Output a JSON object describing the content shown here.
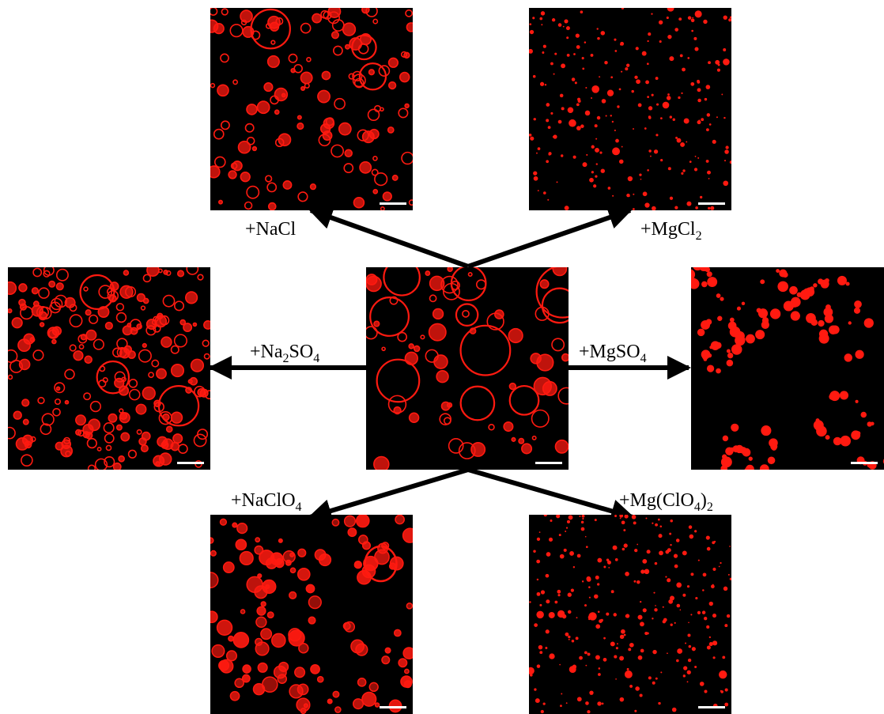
{
  "figure": {
    "colors": {
      "background": "#ffffff",
      "panel_background": "#000000",
      "droplet": "#ff1a10",
      "arrow": "#000000",
      "scale_bar": "#ffffff"
    },
    "panels": [
      {
        "id": "center",
        "condition": ""
      },
      {
        "id": "nacl",
        "condition": "+NaCl"
      },
      {
        "id": "mgcl2",
        "condition": "+MgCl2"
      },
      {
        "id": "na2so4",
        "condition": "+Na2SO4"
      },
      {
        "id": "mgso4",
        "condition": "+MgSO4"
      },
      {
        "id": "naclo4",
        "condition": "+NaClO4"
      },
      {
        "id": "mgclo42",
        "condition": "+Mg(ClO4)2"
      }
    ],
    "labels": {
      "nacl": {
        "main": "+NaCl"
      },
      "mgcl2": {
        "main": "+MgCl",
        "sub": "2"
      },
      "na2so4": {
        "a": "+Na",
        "sub1": "2",
        "b": "SO",
        "sub2": "4"
      },
      "mgso4": {
        "main": "+MgSO",
        "sub": "4"
      },
      "naclo4": {
        "main": "+NaClO",
        "sub": "4"
      },
      "mgclo42": {
        "a": "+Mg(ClO",
        "sub1": "4",
        "b": ")",
        "sub2": "2"
      }
    }
  }
}
